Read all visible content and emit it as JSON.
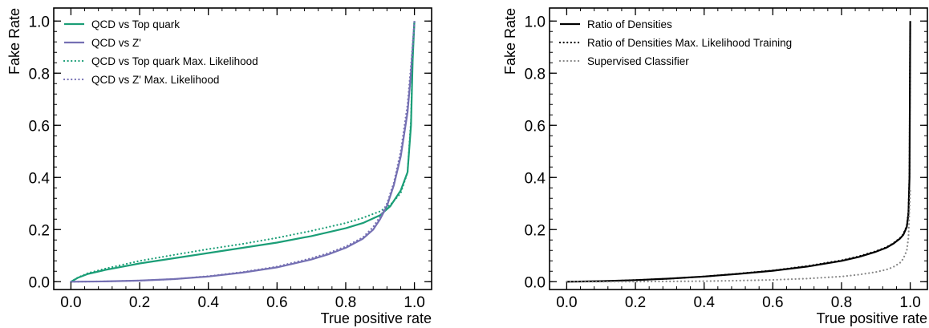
{
  "chart_data": [
    {
      "type": "line",
      "title": "",
      "xlabel": "True positive rate",
      "ylabel": "Fake Rate",
      "xlim": [
        -0.05,
        1.05
      ],
      "ylim": [
        -0.03,
        1.05
      ],
      "xticks": [
        "0.0",
        "0.2",
        "0.4",
        "0.6",
        "0.8",
        "1.0"
      ],
      "yticks": [
        "0.0",
        "0.2",
        "0.4",
        "0.6",
        "0.8",
        "1.0"
      ],
      "grid": false,
      "legend_position": "top-left",
      "series": [
        {
          "name": "QCD vs Top quark",
          "color": "#1b9e77",
          "style": "solid",
          "x": [
            0.0,
            0.02,
            0.05,
            0.1,
            0.2,
            0.3,
            0.4,
            0.5,
            0.6,
            0.7,
            0.8,
            0.85,
            0.9,
            0.93,
            0.96,
            0.98,
            0.99,
            0.995,
            1.0
          ],
          "y": [
            0.0,
            0.015,
            0.03,
            0.045,
            0.07,
            0.09,
            0.11,
            0.13,
            0.15,
            0.175,
            0.205,
            0.225,
            0.255,
            0.29,
            0.35,
            0.42,
            0.6,
            0.85,
            1.0
          ]
        },
        {
          "name": "QCD vs Z'",
          "color": "#7570b3",
          "style": "solid",
          "x": [
            0.0,
            0.1,
            0.2,
            0.3,
            0.4,
            0.5,
            0.6,
            0.7,
            0.75,
            0.8,
            0.85,
            0.88,
            0.9,
            0.92,
            0.94,
            0.96,
            0.98,
            0.99,
            1.0
          ],
          "y": [
            0.0,
            0.001,
            0.004,
            0.01,
            0.02,
            0.035,
            0.055,
            0.085,
            0.105,
            0.13,
            0.165,
            0.2,
            0.24,
            0.29,
            0.37,
            0.48,
            0.65,
            0.8,
            1.0
          ]
        },
        {
          "name": "QCD vs Top quark Max. Likelihood",
          "color": "#1b9e77",
          "style": "dotted",
          "x": [
            0.0,
            0.02,
            0.05,
            0.1,
            0.2,
            0.3,
            0.4,
            0.5,
            0.6,
            0.7,
            0.8,
            0.85,
            0.9,
            0.93,
            0.96,
            0.98,
            0.99,
            0.995,
            1.0
          ],
          "y": [
            0.0,
            0.016,
            0.033,
            0.05,
            0.08,
            0.103,
            0.125,
            0.145,
            0.168,
            0.195,
            0.225,
            0.245,
            0.27,
            0.295,
            0.34,
            0.42,
            0.62,
            0.88,
            1.0
          ]
        },
        {
          "name": "QCD vs Z' Max. Likelihood",
          "color": "#7570b3",
          "style": "dotted",
          "x": [
            0.0,
            0.1,
            0.2,
            0.3,
            0.4,
            0.5,
            0.6,
            0.7,
            0.75,
            0.8,
            0.85,
            0.88,
            0.9,
            0.92,
            0.94,
            0.96,
            0.98,
            0.99,
            1.0
          ],
          "y": [
            0.0,
            0.001,
            0.004,
            0.01,
            0.021,
            0.037,
            0.058,
            0.09,
            0.11,
            0.135,
            0.17,
            0.21,
            0.25,
            0.3,
            0.38,
            0.5,
            0.68,
            0.83,
            1.0
          ]
        }
      ]
    },
    {
      "type": "line",
      "title": "",
      "xlabel": "True positive rate",
      "ylabel": "Fake Rate",
      "xlim": [
        -0.05,
        1.05
      ],
      "ylim": [
        -0.03,
        1.05
      ],
      "xticks": [
        "0.0",
        "0.2",
        "0.4",
        "0.6",
        "0.8",
        "1.0"
      ],
      "yticks": [
        "0.0",
        "0.2",
        "0.4",
        "0.6",
        "0.8",
        "1.0"
      ],
      "grid": false,
      "legend_position": "top-left",
      "series": [
        {
          "name": "Ratio of Densities",
          "color": "#000000",
          "style": "solid",
          "x": [
            0.0,
            0.1,
            0.2,
            0.3,
            0.4,
            0.5,
            0.6,
            0.7,
            0.8,
            0.85,
            0.9,
            0.93,
            0.95,
            0.97,
            0.98,
            0.99,
            0.995,
            0.998,
            1.0
          ],
          "y": [
            0.0,
            0.002,
            0.006,
            0.012,
            0.02,
            0.03,
            0.042,
            0.058,
            0.08,
            0.095,
            0.115,
            0.13,
            0.145,
            0.165,
            0.18,
            0.21,
            0.26,
            0.4,
            1.0
          ]
        },
        {
          "name": "Ratio of Densities Max. Likelihood Training",
          "color": "#000000",
          "style": "dotted",
          "x": [
            0.0,
            0.1,
            0.2,
            0.3,
            0.4,
            0.5,
            0.6,
            0.7,
            0.8,
            0.85,
            0.9,
            0.93,
            0.95,
            0.97,
            0.98,
            0.99,
            0.995,
            0.998,
            1.0
          ],
          "y": [
            0.0,
            0.002,
            0.006,
            0.012,
            0.02,
            0.031,
            0.043,
            0.06,
            0.082,
            0.097,
            0.117,
            0.132,
            0.147,
            0.167,
            0.182,
            0.215,
            0.27,
            0.42,
            1.0
          ]
        },
        {
          "name": "Supervised Classifier",
          "color": "#888888",
          "style": "dotted",
          "x": [
            0.0,
            0.2,
            0.4,
            0.5,
            0.6,
            0.7,
            0.8,
            0.85,
            0.9,
            0.93,
            0.95,
            0.97,
            0.98,
            0.99,
            0.995,
            1.0
          ],
          "y": [
            0.0,
            0.0005,
            0.002,
            0.004,
            0.007,
            0.012,
            0.02,
            0.027,
            0.037,
            0.046,
            0.056,
            0.072,
            0.088,
            0.12,
            0.17,
            0.35
          ]
        }
      ]
    }
  ]
}
